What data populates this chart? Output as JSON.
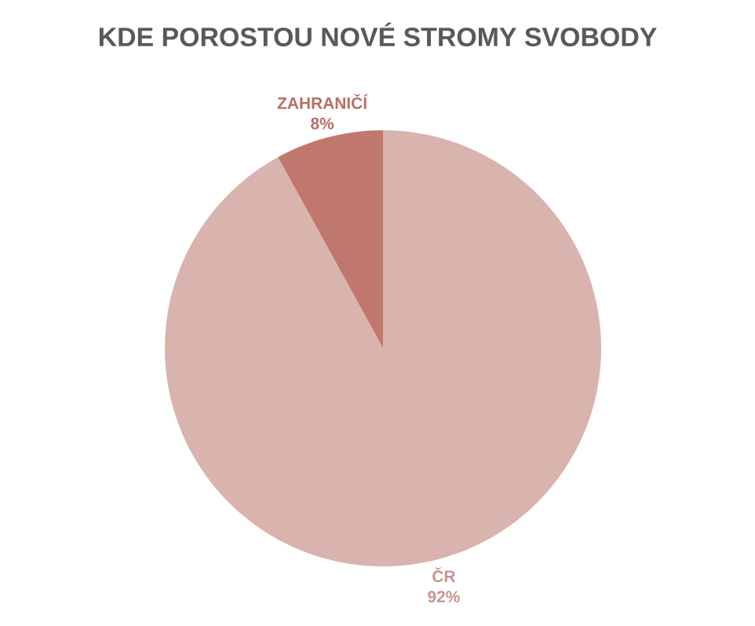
{
  "chart_data": {
    "type": "pie",
    "title": "KDE POROSTOU NOVÉ STROMY SVOBODY",
    "categories": [
      "ZAHRANIČÍ",
      "ČR"
    ],
    "values": [
      8,
      92
    ],
    "colors": [
      "#c0786e",
      "#d9b3ad"
    ],
    "value_labels": [
      "8%",
      "92%"
    ]
  }
}
